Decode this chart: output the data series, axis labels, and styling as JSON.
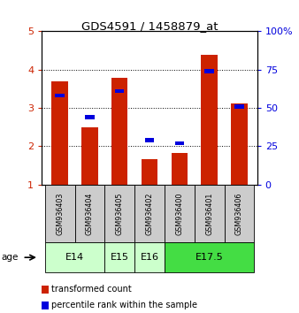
{
  "title": "GDS4591 / 1458879_at",
  "samples": [
    "GSM936403",
    "GSM936404",
    "GSM936405",
    "GSM936402",
    "GSM936400",
    "GSM936401",
    "GSM936406"
  ],
  "transformed_counts": [
    3.7,
    2.5,
    3.78,
    1.67,
    1.82,
    4.38,
    3.12
  ],
  "percentile_ranks": [
    58,
    44,
    61,
    29,
    27,
    74,
    51
  ],
  "age_groups": [
    {
      "label": "E14",
      "indices": [
        0,
        1
      ],
      "color": "#ccffcc"
    },
    {
      "label": "E15",
      "indices": [
        2
      ],
      "color": "#ccffcc"
    },
    {
      "label": "E16",
      "indices": [
        3
      ],
      "color": "#ccffcc"
    },
    {
      "label": "E17.5",
      "indices": [
        4,
        5,
        6
      ],
      "color": "#44dd44"
    }
  ],
  "bar_color": "#cc2200",
  "percentile_color": "#0000dd",
  "ylim_left": [
    1,
    5
  ],
  "ylim_right": [
    0,
    100
  ],
  "yticks_left": [
    1,
    2,
    3,
    4,
    5
  ],
  "yticks_right": [
    0,
    25,
    50,
    75,
    100
  ],
  "yticklabels_right": [
    "0",
    "25",
    "50",
    "75",
    "100%"
  ],
  "bg_color": "#ffffff",
  "plot_bg": "#ffffff",
  "label_color_left": "#cc2200",
  "label_color_right": "#0000dd",
  "age_label": "age",
  "figsize": [
    3.38,
    3.54
  ],
  "dpi": 100
}
